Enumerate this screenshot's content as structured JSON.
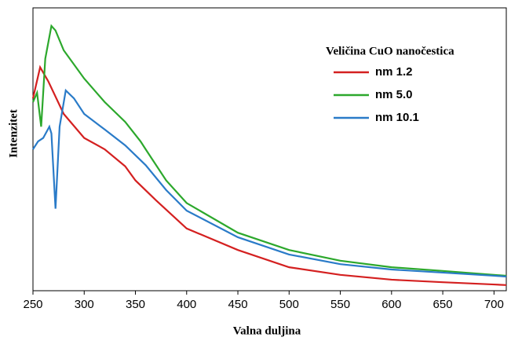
{
  "chart_data": {
    "type": "line",
    "xlabel": "Valna duljina",
    "ylabel": "Intenzitet",
    "legend_title": "Veličina CuO nanočestica",
    "legend": "top-right",
    "xlim": [
      250,
      712
    ],
    "ylim": [
      0,
      100
    ],
    "xticks": [
      250,
      300,
      350,
      400,
      450,
      500,
      550,
      600,
      650,
      700
    ],
    "series": [
      {
        "name": "nm 1.2",
        "color": "#d42020",
        "x": [
          250,
          257,
          265,
          280,
          300,
          320,
          340,
          350,
          370,
          400,
          450,
          500,
          550,
          600,
          650,
          700,
          712
        ],
        "values": [
          68,
          79,
          74,
          62.5,
          54,
          50,
          44,
          39,
          32,
          22,
          14.4,
          8.3,
          5.6,
          3.9,
          3,
          2.2,
          2
        ]
      },
      {
        "name": "nm 5.0",
        "color": "#2ca82c",
        "x": [
          250,
          254,
          258,
          262,
          268,
          272,
          280,
          300,
          320,
          340,
          355,
          360,
          380,
          400,
          450,
          500,
          550,
          600,
          650,
          700,
          712
        ],
        "values": [
          66.7,
          70,
          58,
          82,
          93.6,
          92,
          85,
          75,
          66.7,
          59.7,
          52.8,
          50,
          39,
          31,
          20.5,
          14.4,
          10.6,
          8.3,
          7,
          5.6,
          5.3
        ]
      },
      {
        "name": "nm 10.1",
        "color": "#2a7bc8",
        "x": [
          250,
          255,
          260,
          266,
          268,
          272,
          276,
          282,
          290,
          300,
          320,
          340,
          360,
          380,
          400,
          450,
          500,
          550,
          600,
          650,
          700,
          712
        ],
        "values": [
          50,
          52.8,
          54,
          58,
          55.6,
          29,
          58,
          70.8,
          68,
          62.5,
          57,
          51.4,
          44.4,
          35.6,
          28.3,
          18.9,
          12.8,
          9.4,
          7.5,
          6.4,
          5.3,
          5
        ]
      }
    ]
  }
}
